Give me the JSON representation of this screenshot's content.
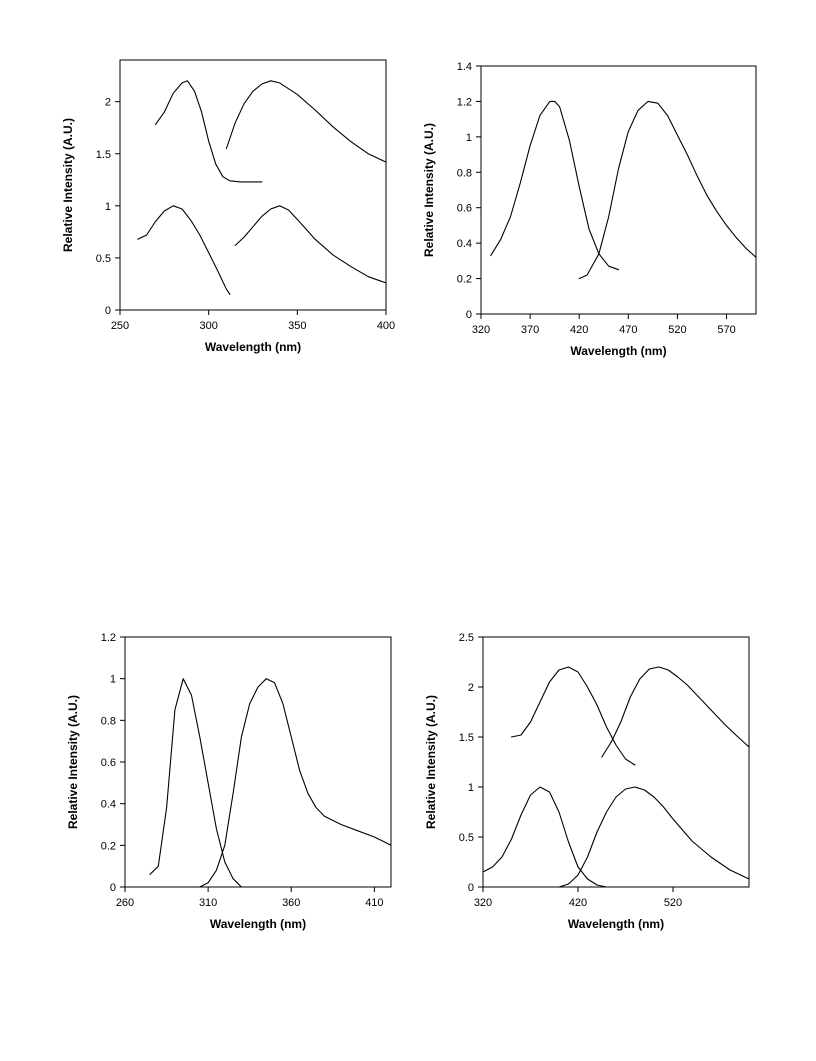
{
  "chart_data": [
    {
      "type": "line",
      "xlabel": "Wavelength (nm)",
      "ylabel": "Relative Intensity  (A.U.)",
      "xlim": [
        250,
        400
      ],
      "ylim": [
        0,
        2.4
      ],
      "xticks": [
        "250",
        "300",
        "350",
        "400"
      ],
      "yticks": [
        "0",
        "0.5",
        "1",
        "1.5",
        "2"
      ],
      "grid": false,
      "series": [
        {
          "x": [
            270,
            275,
            280,
            285,
            288,
            292,
            296,
            300,
            304,
            308,
            312,
            318,
            325,
            330
          ],
          "y": [
            1.78,
            1.9,
            2.08,
            2.18,
            2.2,
            2.1,
            1.9,
            1.62,
            1.4,
            1.28,
            1.24,
            1.23,
            1.23,
            1.23
          ]
        },
        {
          "x": [
            310,
            315,
            320,
            325,
            330,
            335,
            340,
            350,
            360,
            370,
            380,
            390,
            400
          ],
          "y": [
            1.55,
            1.8,
            1.98,
            2.1,
            2.17,
            2.2,
            2.18,
            2.07,
            1.92,
            1.76,
            1.62,
            1.5,
            1.42
          ]
        },
        {
          "x": [
            260,
            265,
            270,
            275,
            280,
            285,
            290,
            295,
            300,
            305,
            310,
            312
          ],
          "y": [
            0.68,
            0.72,
            0.85,
            0.95,
            1.0,
            0.97,
            0.86,
            0.72,
            0.55,
            0.38,
            0.2,
            0.15
          ]
        },
        {
          "x": [
            315,
            320,
            325,
            330,
            335,
            340,
            345,
            350,
            360,
            370,
            380,
            390,
            400
          ],
          "y": [
            0.62,
            0.7,
            0.8,
            0.9,
            0.97,
            1.0,
            0.96,
            0.87,
            0.68,
            0.53,
            0.42,
            0.32,
            0.26
          ]
        }
      ]
    },
    {
      "type": "line",
      "xlabel": "Wavelength (nm)",
      "ylabel": "Relative Intensity  (A.U.)",
      "xlim": [
        320,
        600
      ],
      "ylim": [
        0,
        1.4
      ],
      "xticks": [
        "320",
        "370",
        "420",
        "470",
        "520",
        "570"
      ],
      "yticks": [
        "0",
        "0.2",
        "0.4",
        "0.6",
        "0.8",
        "1",
        "1.2",
        "1.4"
      ],
      "grid": false,
      "series": [
        {
          "x": [
            330,
            340,
            350,
            360,
            370,
            380,
            390,
            395,
            400,
            410,
            420,
            430,
            440,
            450,
            460
          ],
          "y": [
            0.33,
            0.42,
            0.55,
            0.74,
            0.95,
            1.12,
            1.2,
            1.2,
            1.17,
            0.98,
            0.72,
            0.48,
            0.34,
            0.27,
            0.25
          ]
        },
        {
          "x": [
            420,
            428,
            440,
            450,
            460,
            470,
            480,
            490,
            500,
            510,
            520,
            530,
            540,
            550,
            560,
            570,
            580,
            590,
            600
          ],
          "y": [
            0.2,
            0.22,
            0.34,
            0.55,
            0.82,
            1.03,
            1.15,
            1.2,
            1.19,
            1.12,
            1.01,
            0.9,
            0.78,
            0.67,
            0.58,
            0.5,
            0.43,
            0.37,
            0.32
          ]
        }
      ]
    },
    {
      "type": "line",
      "xlabel": "Wavelength (nm)",
      "ylabel": "Relative Intensity (A.U.)",
      "xlim": [
        260,
        420
      ],
      "ylim": [
        0,
        1.2
      ],
      "xticks": [
        "260",
        "310",
        "360",
        "410"
      ],
      "yticks": [
        "0",
        "0.2",
        "0.4",
        "0.6",
        "0.8",
        "1",
        "1.2"
      ],
      "grid": false,
      "series": [
        {
          "x": [
            275,
            280,
            285,
            290,
            295,
            300,
            305,
            310,
            315,
            320,
            325,
            330
          ],
          "y": [
            0.06,
            0.1,
            0.38,
            0.85,
            1.0,
            0.92,
            0.72,
            0.5,
            0.28,
            0.12,
            0.04,
            0.0
          ]
        },
        {
          "x": [
            305,
            310,
            315,
            320,
            325,
            330,
            335,
            340,
            345,
            350,
            355,
            360,
            365,
            370,
            375,
            380,
            390,
            400,
            410,
            420
          ],
          "y": [
            0.0,
            0.02,
            0.08,
            0.2,
            0.45,
            0.72,
            0.88,
            0.96,
            1.0,
            0.98,
            0.88,
            0.72,
            0.56,
            0.45,
            0.38,
            0.34,
            0.3,
            0.27,
            0.24,
            0.2
          ]
        }
      ]
    },
    {
      "type": "line",
      "xlabel": "Wavelength (nm)",
      "ylabel": "Relative Intensity (A.U.)",
      "xlim": [
        320,
        600
      ],
      "ylim": [
        0,
        2.5
      ],
      "xticks": [
        "320",
        "420",
        "520"
      ],
      "yticks": [
        "0",
        "0.5",
        "1",
        "1.5",
        "2",
        "2.5"
      ],
      "grid": false,
      "series": [
        {
          "x": [
            350,
            360,
            370,
            380,
            390,
            400,
            410,
            420,
            430,
            440,
            450,
            460,
            470,
            480
          ],
          "y": [
            1.5,
            1.52,
            1.65,
            1.85,
            2.05,
            2.17,
            2.2,
            2.15,
            2.0,
            1.82,
            1.6,
            1.42,
            1.28,
            1.22
          ]
        },
        {
          "x": [
            445,
            455,
            465,
            475,
            485,
            495,
            505,
            515,
            525,
            535,
            545,
            555,
            565,
            575,
            585,
            600
          ],
          "y": [
            1.3,
            1.45,
            1.65,
            1.9,
            2.08,
            2.18,
            2.2,
            2.17,
            2.1,
            2.02,
            1.92,
            1.82,
            1.72,
            1.62,
            1.53,
            1.4
          ]
        },
        {
          "x": [
            320,
            330,
            340,
            350,
            360,
            370,
            380,
            390,
            400,
            410,
            420,
            430,
            440,
            450
          ],
          "y": [
            0.15,
            0.2,
            0.3,
            0.48,
            0.72,
            0.92,
            1.0,
            0.95,
            0.75,
            0.45,
            0.2,
            0.08,
            0.02,
            0.0
          ]
        },
        {
          "x": [
            400,
            410,
            420,
            430,
            440,
            450,
            460,
            470,
            480,
            490,
            500,
            510,
            520,
            540,
            560,
            580,
            600
          ],
          "y": [
            0.0,
            0.03,
            0.12,
            0.3,
            0.55,
            0.75,
            0.9,
            0.98,
            1.0,
            0.97,
            0.9,
            0.8,
            0.68,
            0.46,
            0.3,
            0.17,
            0.08
          ]
        }
      ]
    }
  ]
}
